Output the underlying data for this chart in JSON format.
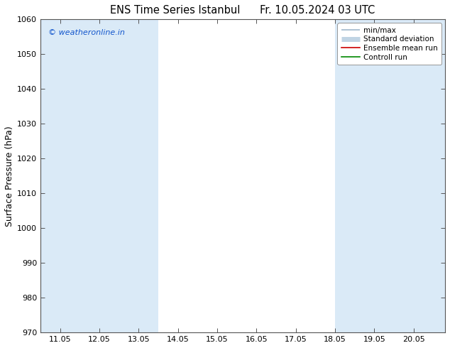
{
  "title1": "ENS Time Series Istanbul",
  "title2": "Fr. 10.05.2024 03 UTC",
  "ylabel": "Surface Pressure (hPa)",
  "ylim": [
    970,
    1060
  ],
  "yticks": [
    970,
    980,
    990,
    1000,
    1010,
    1020,
    1030,
    1040,
    1050,
    1060
  ],
  "x_labels": [
    "11.05",
    "12.05",
    "13.05",
    "14.05",
    "15.05",
    "16.05",
    "17.05",
    "18.05",
    "19.05",
    "20.05"
  ],
  "x_positions": [
    0,
    1,
    2,
    3,
    4,
    5,
    6,
    7,
    8,
    9
  ],
  "xlim": [
    -0.5,
    9.8
  ],
  "shaded_bands": [
    {
      "x_start": -0.5,
      "x_end": 0.5
    },
    {
      "x_start": 0.5,
      "x_end": 1.5
    },
    {
      "x_start": 1.5,
      "x_end": 2.5
    },
    {
      "x_start": 7.0,
      "x_end": 8.0
    },
    {
      "x_start": 8.0,
      "x_end": 9.0
    },
    {
      "x_start": 9.0,
      "x_end": 9.8
    }
  ],
  "band_color": "#daeaf7",
  "watermark": "© weatheronline.in",
  "watermark_color": "#1155cc",
  "legend_labels": [
    "min/max",
    "Standard deviation",
    "Ensemble mean run",
    "Controll run"
  ],
  "legend_line_colors": [
    "#a0b8cc",
    "#c0d4e4",
    "#cc0000",
    "#008800"
  ],
  "background_color": "#ffffff",
  "plot_bg_color": "#ffffff",
  "title_fontsize": 10.5,
  "tick_fontsize": 8,
  "ylabel_fontsize": 9
}
